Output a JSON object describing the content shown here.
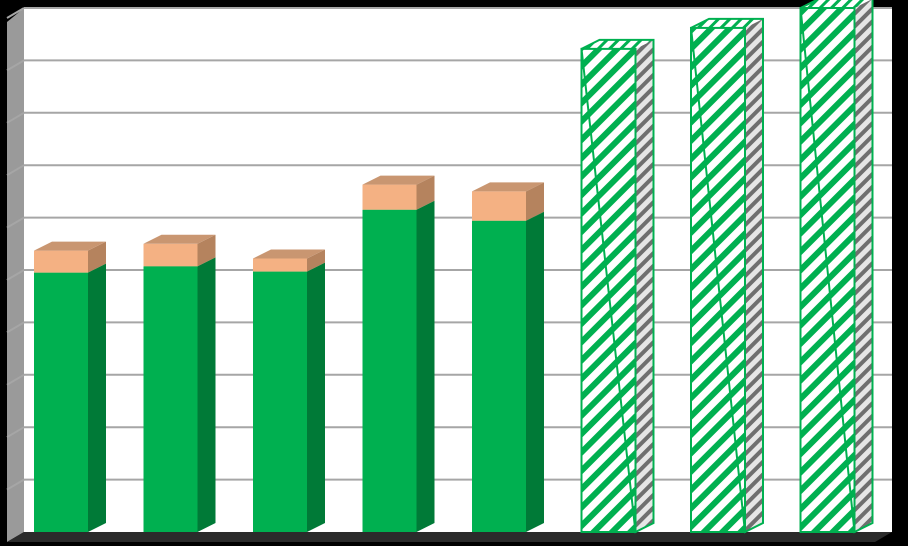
{
  "colors": {
    "background": "#000000",
    "plot_background": "#ffffff",
    "wall": "#9a9a9a",
    "floor": "#2b2b2b",
    "gridline": "#a6a6a6",
    "base_front": "#00b050",
    "base_side": "#007a37",
    "base_top": "#00b050",
    "cap_front": "#f4b183",
    "cap_side": "#b5835e",
    "cap_top": "#c99671",
    "hatch_stripe": "#00b050",
    "hatch_bg": "#ffffff",
    "hatch_side": "#6f6f6f"
  },
  "chart_data": {
    "type": "bar",
    "stacked": true,
    "three_d": true,
    "grid": true,
    "categories": [
      "",
      "",
      "",
      "",
      "",
      "",
      "",
      ""
    ],
    "ylim": [
      0,
      10
    ],
    "yticks": [
      0,
      1,
      2,
      3,
      4,
      5,
      6,
      7,
      8,
      9,
      10
    ],
    "series": [
      {
        "style": "solid",
        "values": [
          4.95,
          5.07,
          4.97,
          6.15,
          5.94,
          0,
          0,
          0
        ]
      },
      {
        "style": "solid-cap",
        "values": [
          0.42,
          0.43,
          0.25,
          0.48,
          0.56,
          0,
          0,
          0
        ]
      },
      {
        "style": "hatched",
        "values": [
          0,
          0,
          0,
          0,
          0,
          9.22,
          9.62,
          10.0
        ]
      }
    ]
  }
}
